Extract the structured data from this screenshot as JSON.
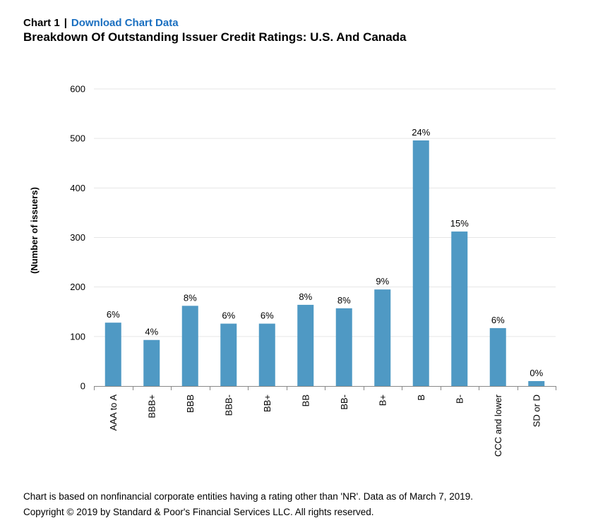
{
  "header": {
    "chart_number": "Chart 1",
    "separator": "|",
    "download_link": "Download Chart Data",
    "title": "Breakdown Of Outstanding Issuer Credit Ratings: U.S. And Canada"
  },
  "footer": {
    "note": "Chart is based on nonfinancial corporate entities having a rating other than 'NR'. Data as of March 7, 2019.",
    "copyright": "Copyright © 2019 by Standard & Poor's Financial Services LLC. All rights reserved."
  },
  "colors": {
    "bar": "#4f99c4",
    "grid": "#e6e6e6",
    "axis": "#888888",
    "link": "#1a6fc0"
  },
  "chart_data": {
    "type": "bar",
    "title": "Breakdown Of Outstanding Issuer Credit Ratings: U.S. And Canada",
    "xlabel": "",
    "ylabel": "(Number of issuers)",
    "ylim": [
      0,
      600
    ],
    "yticks": [
      0,
      100,
      200,
      300,
      400,
      500,
      600
    ],
    "grid": true,
    "legend": "none",
    "categories": [
      "AAA to A",
      "BBB+",
      "BBB",
      "BBB-",
      "BB+",
      "BB",
      "BB-",
      "B+",
      "B",
      "B-",
      "CCC and lower",
      "SD or D"
    ],
    "values": [
      128,
      93,
      162,
      126,
      126,
      164,
      157,
      195,
      496,
      312,
      117,
      10
    ],
    "data_labels": [
      "6%",
      "4%",
      "8%",
      "6%",
      "6%",
      "8%",
      "8%",
      "9%",
      "24%",
      "15%",
      "6%",
      "0%"
    ]
  }
}
